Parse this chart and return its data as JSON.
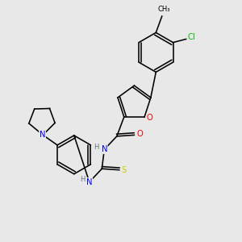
{
  "background_color": "#e8e8e8",
  "atom_colors": {
    "C": "#1a1a1a",
    "N": "#0000ee",
    "O": "#ee0000",
    "S": "#cccc00",
    "Cl": "#00bb00",
    "H": "#607080"
  },
  "layout": {
    "xmin": 0,
    "xmax": 10,
    "ymin": 0,
    "ymax": 10
  }
}
